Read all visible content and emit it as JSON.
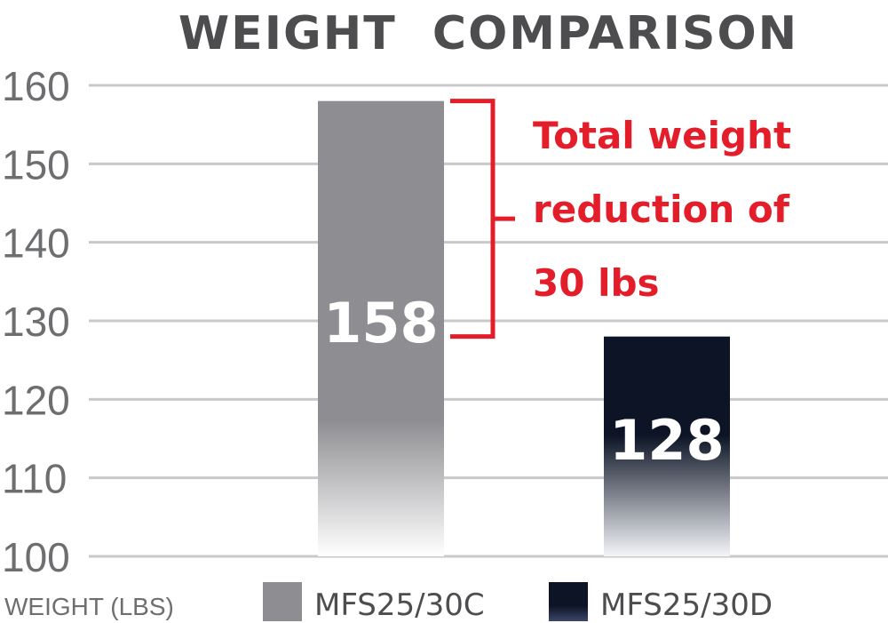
{
  "chart_data": {
    "type": "bar",
    "title": "WEIGHT  COMPARISON",
    "ylabel": "WEIGHT (LBS)",
    "ylim": [
      100,
      160
    ],
    "yticks": [
      160,
      150,
      140,
      130,
      120,
      110,
      100
    ],
    "grid": true,
    "legend_position": "bottom",
    "categories": [
      "MFS25/30C",
      "MFS25/30D"
    ],
    "values": [
      158,
      128
    ],
    "colors": [
      "#8e8e92",
      "#0c1425"
    ],
    "data_labels": [
      "158",
      "128"
    ],
    "annotation": {
      "lines": [
        "Total weight",
        "reduction of",
        "30 lbs"
      ],
      "color": "#e31e2a"
    }
  }
}
